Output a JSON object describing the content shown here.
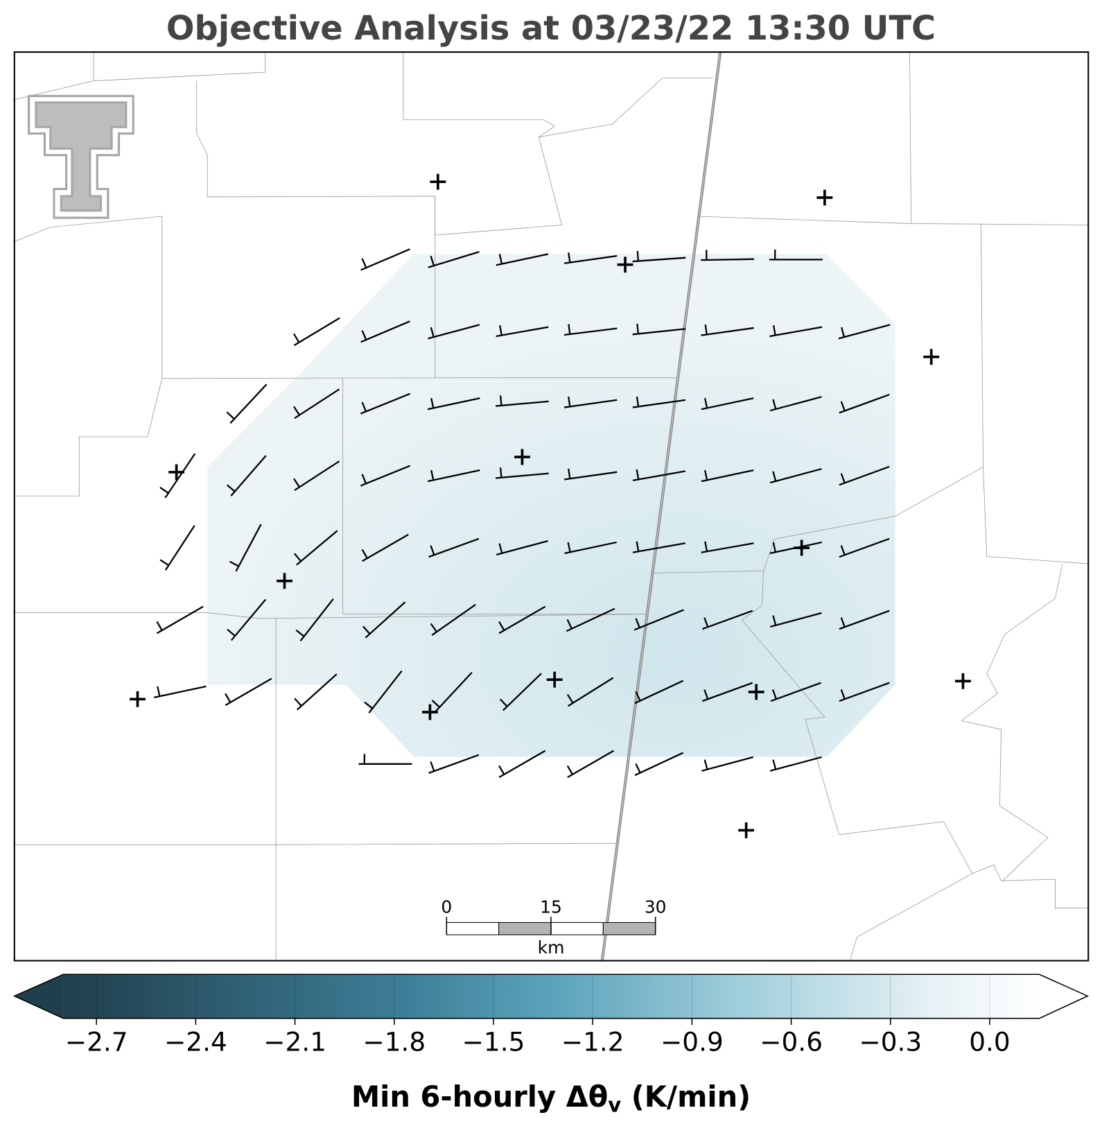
{
  "title": "Objective Analysis at 03/23/22 13:30 UTC",
  "colorbar": {
    "label": "Min 6-hourly Δθ",
    "label_subscript": "v",
    "label_suffix": " (K/min)",
    "lim": [
      -2.8,
      0.15
    ],
    "ticks": [
      {
        "value": -2.7,
        "label": "−2.7"
      },
      {
        "value": -2.4,
        "label": "−2.4"
      },
      {
        "value": -2.1,
        "label": "−2.1"
      },
      {
        "value": -1.8,
        "label": "−1.8"
      },
      {
        "value": -1.5,
        "label": "−1.5"
      },
      {
        "value": -1.2,
        "label": "−1.2"
      },
      {
        "value": -0.9,
        "label": "−0.9"
      },
      {
        "value": -0.6,
        "label": "−0.6"
      },
      {
        "value": -0.3,
        "label": "−0.3"
      },
      {
        "value": 0,
        "label": "0.0"
      }
    ]
  },
  "scale_bar": {
    "ticks": [
      0,
      15,
      30
    ],
    "unit": "km"
  },
  "wind_barbs": {
    "angles_deg": [
      [
        null,
        null,
        null,
        23,
        17,
        12,
        8,
        4,
        1,
        0,
        null
      ],
      [
        null,
        null,
        31,
        23,
        15,
        10,
        7,
        6,
        8,
        10,
        15
      ],
      [
        null,
        47,
        33,
        22,
        12,
        5,
        8,
        8,
        12,
        15,
        20
      ],
      [
        56,
        49,
        33,
        22,
        12,
        5,
        8,
        10,
        12,
        15,
        20
      ],
      [
        57,
        62,
        40,
        30,
        20,
        15,
        12,
        10,
        10,
        12,
        20
      ],
      [
        30,
        50,
        52,
        42,
        35,
        30,
        25,
        22,
        20,
        15,
        20
      ],
      [
        12,
        30,
        42,
        52,
        47,
        44,
        32,
        25,
        20,
        20,
        20
      ],
      [
        null,
        null,
        null,
        0,
        20,
        30,
        30,
        25,
        15,
        15,
        null
      ]
    ]
  }
}
